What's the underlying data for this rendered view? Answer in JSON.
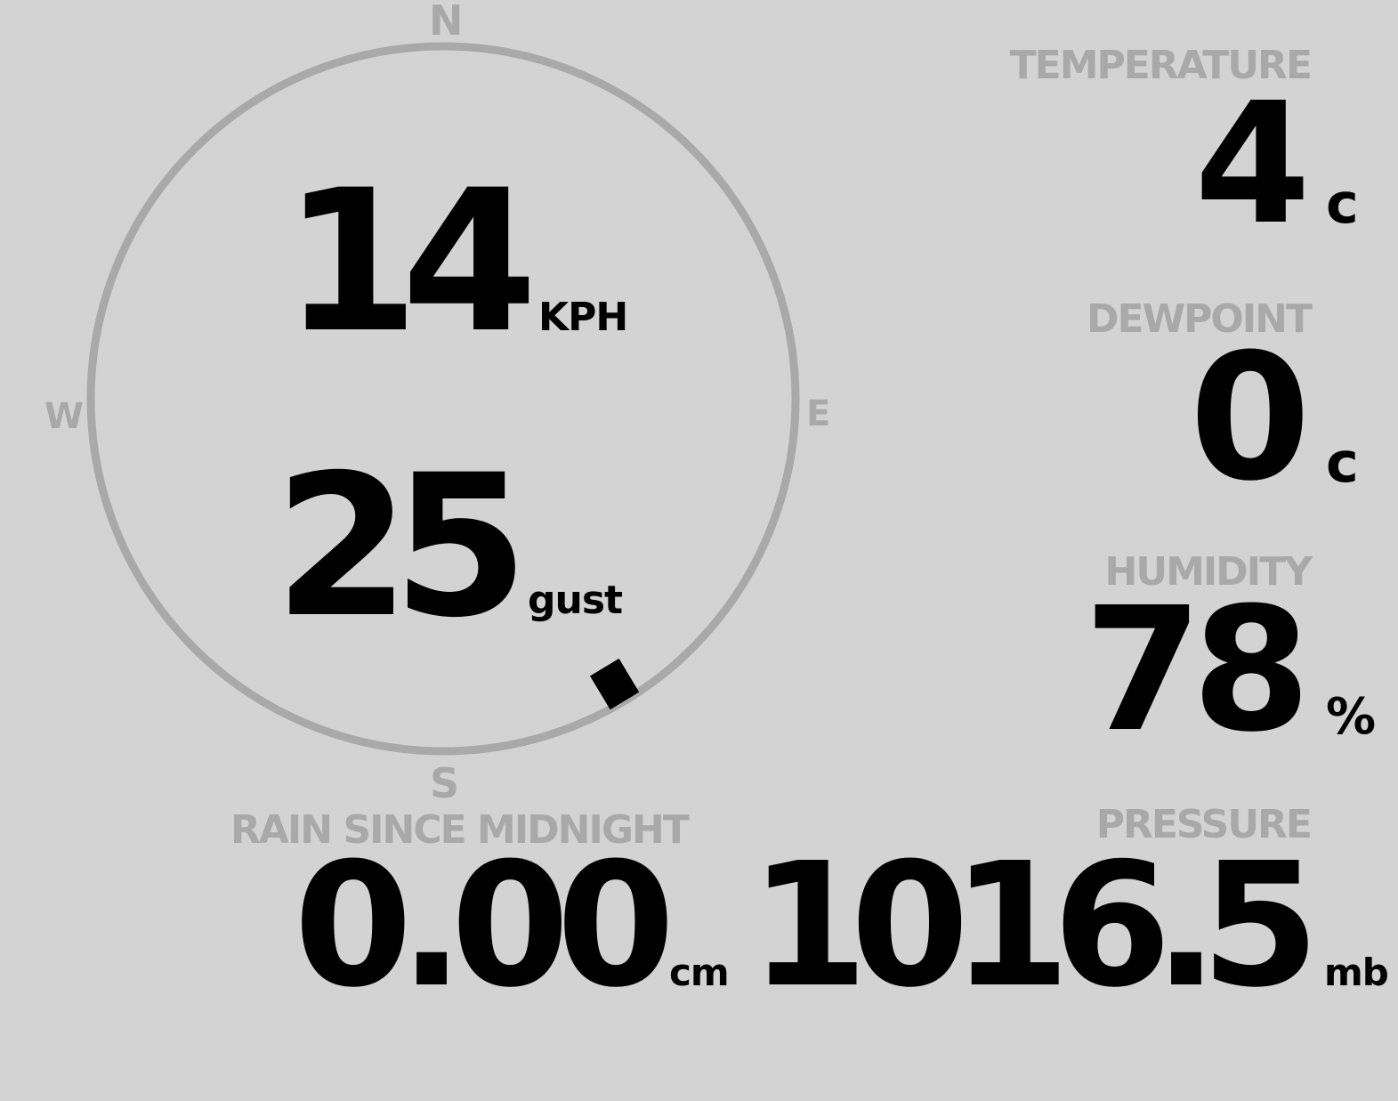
{
  "compass": {
    "north": "N",
    "south": "S",
    "east": "E",
    "west": "W",
    "wind_direction_deg": 149,
    "ring_color": "#a9a9a9",
    "marker_color": "#000000"
  },
  "wind": {
    "speed": "14",
    "speed_unit": "KPH",
    "gust": "25",
    "gust_unit": "gust"
  },
  "temperature": {
    "label": "TEMPERATURE",
    "value": "4",
    "unit": "c"
  },
  "dewpoint": {
    "label": "DEWPOINT",
    "value": "0",
    "unit": "c"
  },
  "humidity": {
    "label": "HUMIDITY",
    "value": "78",
    "unit": "%"
  },
  "rain": {
    "label": "RAIN SINCE MIDNIGHT",
    "value": "0.00",
    "unit": "cm"
  },
  "pressure": {
    "label": "PRESSURE",
    "value": "1016.5",
    "unit": "mb"
  },
  "colors": {
    "background": "#d3d3d3",
    "label": "#a9a9a9",
    "value": "#000000"
  }
}
